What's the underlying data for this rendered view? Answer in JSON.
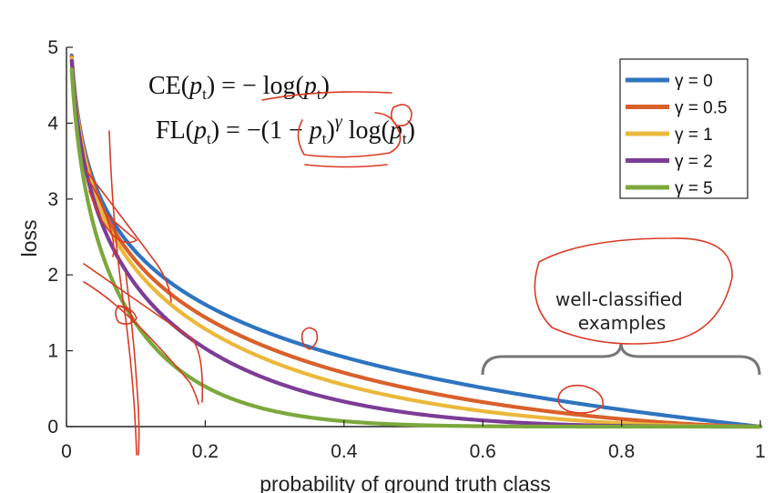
{
  "chart_data": {
    "type": "line",
    "title": "",
    "xlabel": "probability of ground truth class",
    "ylabel": "loss",
    "xlim": [
      0,
      1
    ],
    "ylim": [
      0,
      5
    ],
    "xticks": [
      "0",
      "0.2",
      "0.4",
      "0.6",
      "0.8",
      "1"
    ],
    "yticks": [
      "0",
      "1",
      "2",
      "3",
      "4",
      "5"
    ],
    "grid": false,
    "legend_position": "top-right",
    "formulas": {
      "ce": "CE(pt) = − log(pt)",
      "fl": "FL(pt) = −(1 − pt)γ log(pt)"
    },
    "series": [
      {
        "name": "γ = 0",
        "gamma": 0,
        "color": "#2f74c0",
        "x": [
          0.01,
          0.05,
          0.1,
          0.2,
          0.3,
          0.4,
          0.5,
          0.6,
          0.7,
          0.8,
          0.9,
          1.0
        ],
        "y": [
          4.61,
          3.0,
          2.3,
          1.61,
          1.2,
          0.92,
          0.69,
          0.51,
          0.36,
          0.22,
          0.11,
          0.0
        ]
      },
      {
        "name": "γ = 0.5",
        "gamma": 0.5,
        "color": "#d9602a",
        "x": [
          0.01,
          0.05,
          0.1,
          0.2,
          0.3,
          0.4,
          0.5,
          0.6,
          0.7,
          0.8,
          0.9,
          1.0
        ],
        "y": [
          4.58,
          2.92,
          2.18,
          1.44,
          1.01,
          0.71,
          0.49,
          0.32,
          0.2,
          0.1,
          0.03,
          0.0
        ]
      },
      {
        "name": "γ = 1",
        "gamma": 1,
        "color": "#ebb83c",
        "x": [
          0.01,
          0.05,
          0.1,
          0.2,
          0.3,
          0.4,
          0.5,
          0.6,
          0.7,
          0.8,
          0.9,
          1.0
        ],
        "y": [
          4.56,
          2.85,
          2.07,
          1.29,
          0.84,
          0.55,
          0.35,
          0.2,
          0.11,
          0.04,
          0.01,
          0.0
        ]
      },
      {
        "name": "γ = 2",
        "gamma": 2,
        "color": "#7c3d96",
        "x": [
          0.01,
          0.05,
          0.1,
          0.2,
          0.3,
          0.4,
          0.5,
          0.6,
          0.7,
          0.8,
          0.9,
          1.0
        ],
        "y": [
          4.52,
          2.71,
          1.87,
          1.03,
          0.59,
          0.33,
          0.17,
          0.08,
          0.03,
          0.01,
          0.0,
          0.0
        ]
      },
      {
        "name": "γ = 5",
        "gamma": 5,
        "color": "#7ba83c",
        "x": [
          0.01,
          0.05,
          0.1,
          0.2,
          0.3,
          0.4,
          0.5,
          0.6,
          0.7,
          0.8,
          0.9,
          1.0
        ],
        "y": [
          4.39,
          2.32,
          1.36,
          0.53,
          0.2,
          0.07,
          0.02,
          0.01,
          0.0,
          0.0,
          0.0,
          0.0
        ]
      }
    ],
    "annotations": [
      {
        "text": "well-classified\nexamples",
        "x_range": [
          0.6,
          1.0
        ]
      }
    ]
  },
  "colors": {
    "axis": "#222222",
    "ink": "#d93a24",
    "brace": "#777777"
  }
}
